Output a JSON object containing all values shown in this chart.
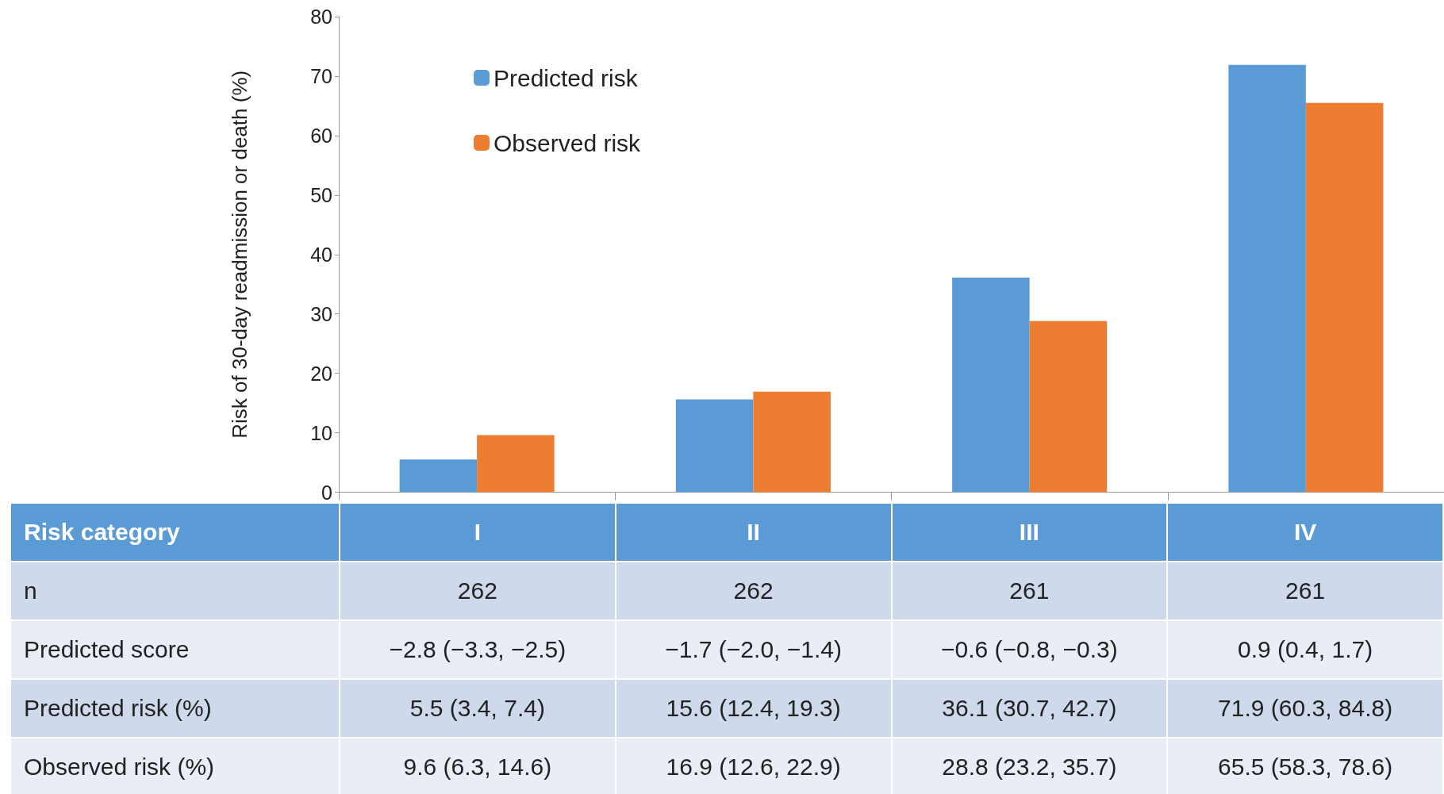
{
  "chart_data": {
    "type": "bar",
    "ylabel": "Risk of 30-day readmission or death (%)",
    "categories": [
      "I",
      "II",
      "III",
      "IV"
    ],
    "series": [
      {
        "name": "Predicted risk",
        "color": "#5b9bd5",
        "values": [
          5.5,
          15.6,
          36.1,
          71.9
        ],
        "value_labels": [
          "5.5 (3.4, 7.4)",
          "15.6 (12.4, 19.3)",
          "36.1 (30.7, 42.7)",
          "71.9 (60.3, 84.8)"
        ]
      },
      {
        "name": "Observed risk",
        "color": "#ed7d31",
        "values": [
          9.6,
          16.9,
          28.8,
          65.5
        ],
        "value_labels": [
          "9.6 (6.3, 14.6)",
          "16.9 (12.6, 22.9)",
          "28.8 (23.2, 35.7)",
          "65.5 (58.3, 78.6)"
        ]
      }
    ],
    "ylim": [
      0,
      80
    ],
    "yticks": [
      0,
      10,
      20,
      30,
      40,
      50,
      60,
      70,
      80
    ],
    "legend": "top left",
    "annotations": [
      "Risk category",
      "n",
      "262",
      "262",
      "261",
      "261",
      "Predicted score",
      "−2.8 (−3.3, −2.5)",
      "−1.7 (−2.0, −1.4)",
      "−0.6 (−0.8, −0.3)",
      "0.9 (0.4, 1.7)",
      "Predicted risk (%)",
      "Observed risk (%)"
    ]
  }
}
